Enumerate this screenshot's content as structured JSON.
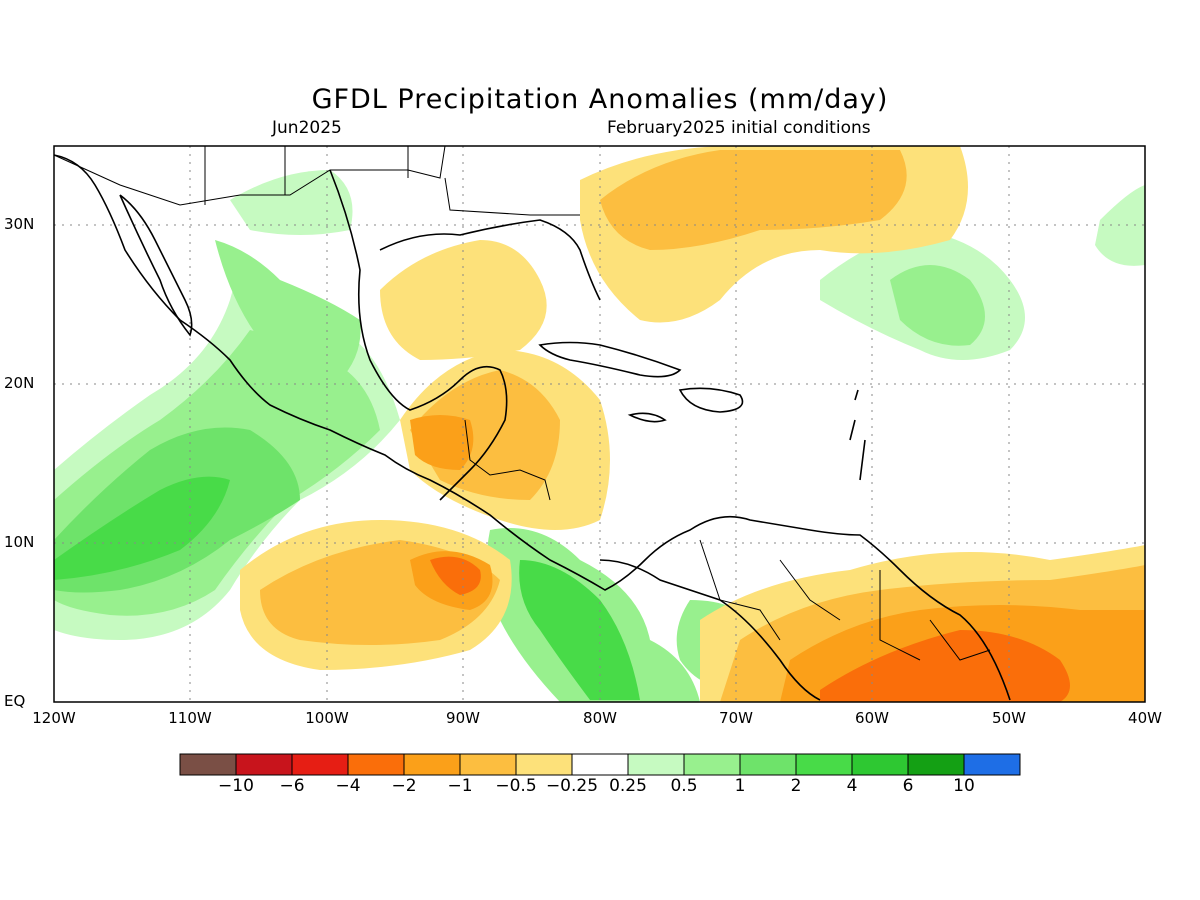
{
  "map": {
    "title": "GFDL Precipitation Anomalies (mm/day)",
    "valid_month": "Jun2025",
    "init_label": "February2025 initial conditions",
    "lat_labels": [
      "30N",
      "20N",
      "10N",
      "EQ"
    ],
    "lon_labels": [
      "120W",
      "110W",
      "100W",
      "90W",
      "80W",
      "70W",
      "60W",
      "50W",
      "40W"
    ],
    "units": "mm/day"
  },
  "colorbar": {
    "labels": [
      "−10",
      "−6",
      "−4",
      "−2",
      "−1",
      "−0.5",
      "−0.25",
      "0.25",
      "0.5",
      "1",
      "2",
      "4",
      "6",
      "10"
    ],
    "colors": [
      "#7a4f45",
      "#c8141c",
      "#e61e14",
      "#fa6e0a",
      "#fba019",
      "#fcbe40",
      "#fde17a",
      "#ffffff",
      "#c6fac1",
      "#98f08e",
      "#6ee36a",
      "#48db48",
      "#2ec832",
      "#14a014",
      "#1e6ee6"
    ]
  }
}
